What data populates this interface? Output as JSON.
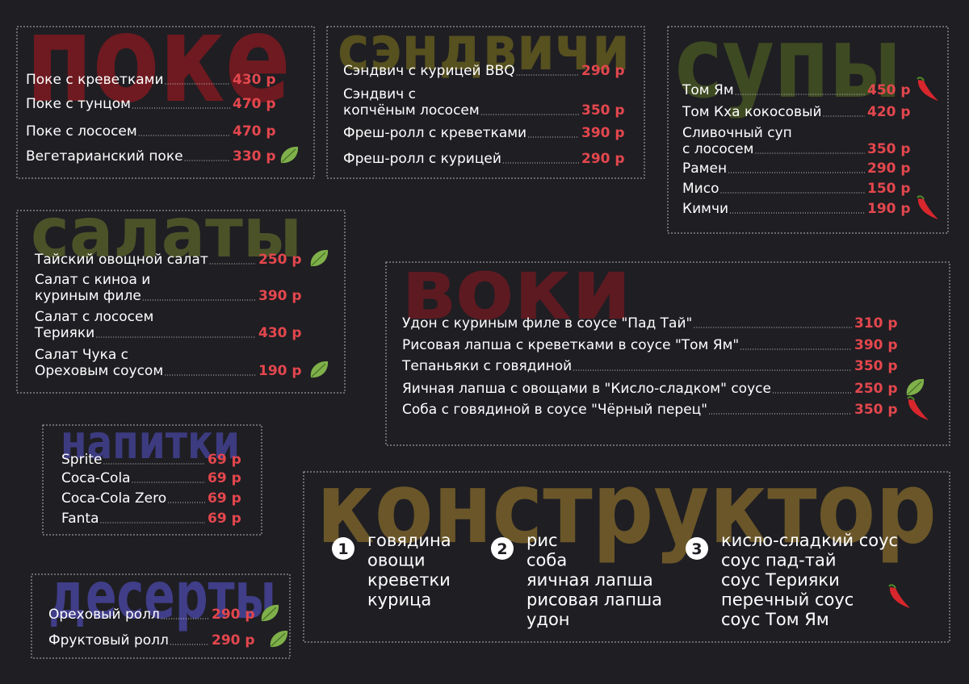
{
  "sections": [
    {
      "title": "поке",
      "items": [
        {
          "name": "Поке с креветками",
          "price": "430 р"
        },
        {
          "name": "Поке с тунцом",
          "price": "470 р"
        },
        {
          "name": "Поке с лососем",
          "price": "470 р"
        },
        {
          "name": "Вегетарианский поке",
          "price": "330 р"
        }
      ]
    },
    {
      "title": "сэндвичи",
      "items": [
        {
          "name": "Сэндвич с курицей BBQ",
          "price": "290 р"
        },
        {
          "name": "Сэндвич с\nкопчёным лососем",
          "price": "350 р"
        },
        {
          "name": "Фреш-ролл с креветками",
          "price": "390 р"
        },
        {
          "name": "Фреш-ролл с курицей",
          "price": "290 р"
        }
      ]
    },
    {
      "title": "супы",
      "items": [
        {
          "name": "Том Ям",
          "price": "450 р"
        },
        {
          "name": "Том Кха кокосовый",
          "price": "420 р"
        },
        {
          "name": "Сливочный суп\nс лососем",
          "price": "350 р"
        },
        {
          "name": "Рамен",
          "price": "290 р"
        },
        {
          "name": "Мисо",
          "price": "150 р"
        },
        {
          "name": "Кимчи",
          "price": "190 р"
        }
      ]
    },
    {
      "title": "салаты",
      "items": [
        {
          "name": "Тайский овощной салат",
          "price": "250 р"
        },
        {
          "name": "Салат с киноа и\nкуриным филе",
          "price": "390 р"
        },
        {
          "name": "Салат с лососем\nТерияки",
          "price": "430 р"
        },
        {
          "name": "Салат Чука с\nОреховым соусом",
          "price": "190 р"
        }
      ]
    },
    {
      "title": "воки",
      "items": [
        {
          "name": "Удон с куриным филе в соусе \"Пад Тай\"",
          "price": "310 р"
        },
        {
          "name": "Рисовая лапша с креветками в соусе \"Том Ям\"",
          "price": "390 р"
        },
        {
          "name": "Тепаньяки с говядиной",
          "price": "350 р"
        },
        {
          "name": "Яичная лапша с овощами в \"Кисло-сладком\" соусе",
          "price": "250 р"
        },
        {
          "name": "Соба с говядиной в соусе \"Чёрный перец\"",
          "price": "350 р"
        }
      ]
    },
    {
      "title": "напитки",
      "items": [
        {
          "name": "Sprite",
          "price": "69 р"
        },
        {
          "name": "Coca-Cola",
          "price": "69 р"
        },
        {
          "name": "Coca-Cola Zero",
          "price": "69 р"
        },
        {
          "name": "Fanta",
          "price": "69 р"
        }
      ]
    },
    {
      "title": "десерты",
      "items": [
        {
          "name": "Ореховый ролл",
          "price": "290 р"
        },
        {
          "name": "Фруктовый ролл",
          "price": "290 р"
        }
      ]
    }
  ],
  "constructor": {
    "title": "конструктор",
    "steps": [
      {
        "number": "1",
        "options": [
          "говядина",
          "овощи",
          "креветки",
          "курица"
        ]
      },
      {
        "number": "2",
        "options": [
          "рис",
          "соба",
          "яичная лапша",
          "рисовая лапша",
          "удон"
        ]
      },
      {
        "number": "3",
        "options": [
          "кисло-сладкий соус",
          "соус пад-тай",
          "соус Терияки",
          "перечный соус",
          "соус Том Ям"
        ]
      }
    ]
  }
}
